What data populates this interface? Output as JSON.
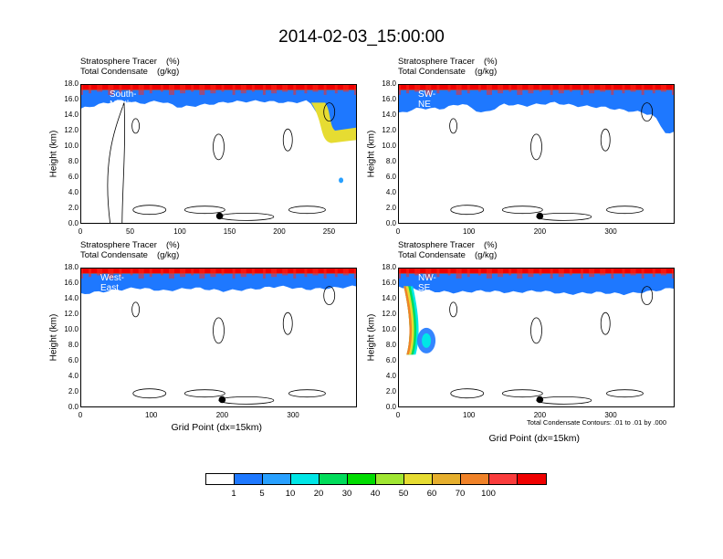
{
  "title": "2014-02-03_15:00:00",
  "header": {
    "line1_label": "Stratosphere Tracer",
    "line1_units": "(%)",
    "line2_label": "Total Condensate",
    "line2_units": "(g/kg)"
  },
  "y_axis_title": "Height (km)",
  "x_axis_title": "Grid Point (dx=15km)",
  "contour_note": "Total Condensate Contours: .01 to .01 by .000",
  "colorbar": {
    "levels": [
      "1",
      "5",
      "10",
      "20",
      "30",
      "40",
      "50",
      "60",
      "70",
      "100"
    ],
    "colors": [
      "#ffffff",
      "#1e78ff",
      "#28a0ff",
      "#00e6e6",
      "#00dc5a",
      "#00dc00",
      "#a0e632",
      "#e6dc32",
      "#e6af2d",
      "#f08228",
      "#fa3c3c",
      "#f00000"
    ]
  },
  "chart_data": [
    {
      "type": "heatmap",
      "name": "South-North",
      "xlim": [
        0,
        278
      ],
      "ylim": [
        0,
        18
      ],
      "xticks": [
        0,
        50,
        100,
        150,
        200,
        250
      ],
      "yticks": [
        "0.0",
        "2.0",
        "4.0",
        "6.0",
        "8.0",
        "10.0",
        "12.0",
        "14.0",
        "16.0",
        "18.0"
      ],
      "tropopause_km": [
        [
          0,
          14.8
        ],
        [
          20,
          15.4
        ],
        [
          40,
          15.9
        ],
        [
          60,
          15.5
        ],
        [
          80,
          15.8
        ],
        [
          100,
          15.0
        ],
        [
          130,
          15.4
        ],
        [
          150,
          15.7
        ],
        [
          180,
          15.8
        ],
        [
          210,
          15.6
        ],
        [
          230,
          15.8
        ],
        [
          240,
          14.0
        ],
        [
          248,
          11.0
        ],
        [
          258,
          10.6
        ],
        [
          268,
          11.2
        ],
        [
          278,
          11.6
        ]
      ],
      "marker": {
        "x": 140,
        "y_km": 1.0
      }
    },
    {
      "type": "heatmap",
      "name": "SW-NE",
      "xlim": [
        0,
        390
      ],
      "ylim": [
        0,
        18
      ],
      "xticks": [
        0,
        100,
        200,
        300
      ],
      "yticks": [
        "0.0",
        "2.0",
        "4.0",
        "6.0",
        "8.0",
        "10.0",
        "12.0",
        "14.0",
        "16.0",
        "18.0"
      ],
      "tropopause_km": [
        [
          0,
          14.2
        ],
        [
          30,
          14.9
        ],
        [
          60,
          14.8
        ],
        [
          90,
          15.5
        ],
        [
          120,
          14.2
        ],
        [
          150,
          15.4
        ],
        [
          180,
          15.2
        ],
        [
          220,
          15.6
        ],
        [
          250,
          15.2
        ],
        [
          290,
          15.0
        ],
        [
          320,
          14.6
        ],
        [
          340,
          14.4
        ],
        [
          360,
          14.0
        ],
        [
          380,
          11.4
        ],
        [
          390,
          11.8
        ]
      ],
      "marker": {
        "x": 200,
        "y_km": 1.0
      }
    },
    {
      "type": "heatmap",
      "name": "West-East",
      "xlim": [
        0,
        390
      ],
      "ylim": [
        0,
        18
      ],
      "xticks": [
        0,
        100,
        200,
        300
      ],
      "yticks": [
        "0.0",
        "2.0",
        "4.0",
        "6.0",
        "8.0",
        "10.0",
        "12.0",
        "14.0",
        "16.0",
        "18.0"
      ],
      "tropopause_km": [
        [
          0,
          14.6
        ],
        [
          40,
          15.0
        ],
        [
          80,
          15.4
        ],
        [
          120,
          15.0
        ],
        [
          160,
          15.4
        ],
        [
          200,
          15.0
        ],
        [
          240,
          15.2
        ],
        [
          280,
          15.6
        ],
        [
          320,
          15.2
        ],
        [
          360,
          15.4
        ],
        [
          390,
          15.6
        ]
      ],
      "marker": {
        "x": 200,
        "y_km": 1.0
      }
    },
    {
      "type": "heatmap",
      "name": "NW-SE",
      "xlim": [
        0,
        390
      ],
      "ylim": [
        0,
        18
      ],
      "xticks": [
        0,
        100,
        200,
        300
      ],
      "yticks": [
        "0.0",
        "2.0",
        "4.0",
        "6.0",
        "8.0",
        "10.0",
        "12.0",
        "14.0",
        "16.0",
        "18.0"
      ],
      "tropopause_km": [
        [
          0,
          15.6
        ],
        [
          40,
          15.0
        ],
        [
          80,
          14.8
        ],
        [
          120,
          15.0
        ],
        [
          160,
          14.8
        ],
        [
          200,
          15.0
        ],
        [
          240,
          14.6
        ],
        [
          280,
          14.8
        ],
        [
          320,
          14.6
        ],
        [
          360,
          15.0
        ],
        [
          390,
          15.4
        ]
      ],
      "intrusion": true,
      "marker": {
        "x": 200,
        "y_km": 1.0
      }
    }
  ]
}
